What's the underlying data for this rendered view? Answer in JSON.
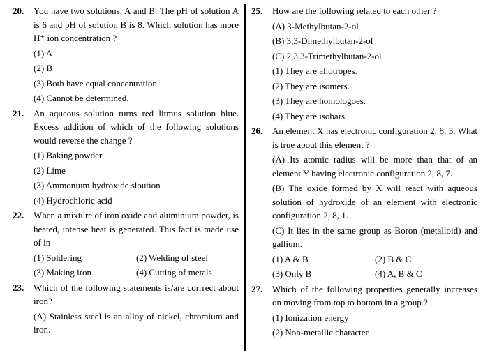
{
  "left": {
    "q20": {
      "num": "20.",
      "stem": "You have two solutions, A and B. The pH of solution A is 6 and pH of solution B is 8. Which solution has more H⁺ ion concentration ?",
      "opts": [
        "(1) A",
        "(2) B",
        "(3) Both have equal concentration",
        "(4) Cannot be determined."
      ]
    },
    "q21": {
      "num": "21.",
      "stem": "An aqueous solution turns red litmus solution blue. Excess addition of which of the following solutions would reverse the change ?",
      "opts": [
        "(1) Baking powder",
        "(2) Lime",
        "(3) Ammonium hydroxide sloution",
        "(4) Hydrochloric acid"
      ]
    },
    "q22": {
      "num": "22.",
      "stem": "When a mixture of iron oxide and aluminium powder, is heated, intense heat is generated. This fact is made use of in",
      "row1": [
        "(1) Soldering",
        "(2) Welding of steel"
      ],
      "row2": [
        "(3) Making iron",
        "(4) Cutting of metals"
      ]
    },
    "q23": {
      "num": "23.",
      "stem": "Which of the following statements is/are corrrect about iron?",
      "optA": "(A) Stainless steel is an alloy of nickel, chromium and iron."
    }
  },
  "right": {
    "q25": {
      "num": "25.",
      "stem": "How are the following related to each other ?",
      "subs": [
        "(A) 3-Methylbutan-2-ol",
        "(B) 3,3-Dimethylbutan-2-ol",
        "(C) 2,3,3-Trimethylbutan-2-ol"
      ],
      "opts": [
        "(1) They are allotropes.",
        "(2) They are isomers.",
        "(3) They are homologoes.",
        "(4) They are isobars."
      ]
    },
    "q26": {
      "num": "26.",
      "stem": "An element X has electronic configuration 2, 8, 3. What is true about this element ?",
      "optA": "(A) Its atomic radius will be more than that of an element Y having electronic configuration 2, 8, 7.",
      "optB": "(B) The oxide formed by X will react with aqueous solution of hydroxide of an element with electronic configuration 2, 8, 1.",
      "optC": "(C) It lies in the same group as Boron (metalloid) and gallium.",
      "row1": [
        "(1) A & B",
        "(2) B & C"
      ],
      "row2": [
        "(3) Only B",
        "(4) A, B & C"
      ]
    },
    "q27": {
      "num": "27.",
      "stem": "Which of the following properties generally increases on moving from top to bottom in a group ?",
      "opts": [
        "(1) Ionization energy",
        "(2) Non-metallic character"
      ]
    }
  }
}
